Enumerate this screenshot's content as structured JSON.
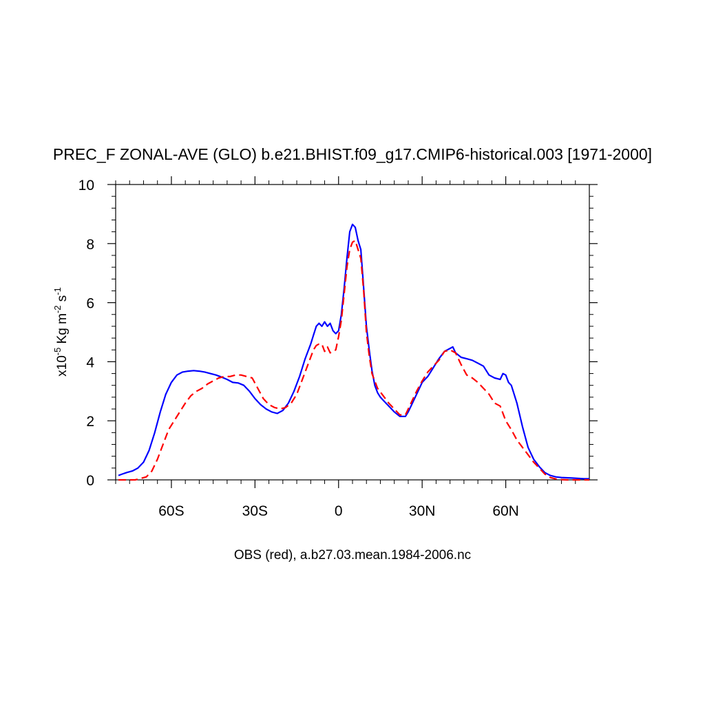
{
  "chart_data": {
    "type": "line",
    "title": "PREC_F ZONAL-AVE (GLO) b.e21.BHIST.f09_g17.CMIP6-historical.003 [1971-2000]",
    "xlabel": "OBS (red), a.b27.03.mean.1984-2006.nc",
    "ylabel": {
      "prefix": "x10",
      "exp1": "-5",
      "mid": " Kg m",
      "exp2": "-2",
      "mid2": " s",
      "exp3": "-1"
    },
    "xlim": [
      -80,
      90
    ],
    "ylim": [
      0,
      10
    ],
    "x_ticks": [
      {
        "value": -60,
        "label": "60S"
      },
      {
        "value": -30,
        "label": "30S"
      },
      {
        "value": 0,
        "label": "0"
      },
      {
        "value": 30,
        "label": "30N"
      },
      {
        "value": 60,
        "label": "60N"
      }
    ],
    "y_ticks": [
      {
        "value": 0,
        "label": "0"
      },
      {
        "value": 2,
        "label": "2"
      },
      {
        "value": 4,
        "label": "4"
      },
      {
        "value": 6,
        "label": "6"
      },
      {
        "value": 8,
        "label": "8"
      },
      {
        "value": 10,
        "label": "10"
      }
    ],
    "grid": false,
    "series": [
      {
        "color": "#0000ff",
        "dash": "solid",
        "x": [
          -79,
          -77.5,
          -76,
          -74,
          -72,
          -70,
          -68,
          -66,
          -64,
          -62,
          -60,
          -58,
          -56,
          -54,
          -52,
          -50,
          -48,
          -46,
          -44,
          -42,
          -40,
          -38,
          -36,
          -34,
          -32,
          -30,
          -28,
          -26,
          -24,
          -22,
          -20,
          -18,
          -16,
          -14,
          -12,
          -10,
          -9,
          -8,
          -7,
          -6,
          -5,
          -4,
          -3,
          -2,
          -1,
          0,
          1,
          2,
          3,
          4,
          5,
          6,
          7,
          8,
          9,
          10,
          11,
          12,
          13,
          14,
          15,
          16,
          18,
          20,
          22,
          24,
          25,
          26,
          28,
          30,
          32,
          34,
          36,
          38,
          40,
          41,
          42,
          44,
          46,
          48,
          50,
          52,
          54,
          56,
          58,
          59,
          60,
          61,
          62,
          64,
          66,
          68,
          70,
          72,
          74,
          76,
          78,
          80,
          82,
          84,
          86,
          88,
          90
        ],
        "y": [
          0.15,
          0.2,
          0.25,
          0.3,
          0.4,
          0.6,
          1.0,
          1.6,
          2.3,
          2.9,
          3.3,
          3.55,
          3.65,
          3.68,
          3.7,
          3.68,
          3.65,
          3.6,
          3.55,
          3.48,
          3.4,
          3.3,
          3.28,
          3.2,
          3.0,
          2.75,
          2.55,
          2.4,
          2.3,
          2.25,
          2.35,
          2.6,
          3.0,
          3.5,
          4.1,
          4.6,
          4.9,
          5.2,
          5.3,
          5.2,
          5.35,
          5.2,
          5.3,
          5.05,
          4.95,
          5.05,
          5.6,
          6.5,
          7.5,
          8.4,
          8.65,
          8.55,
          8.1,
          7.8,
          6.5,
          5.2,
          4.4,
          3.7,
          3.2,
          2.95,
          2.8,
          2.7,
          2.5,
          2.3,
          2.15,
          2.15,
          2.3,
          2.5,
          2.9,
          3.3,
          3.5,
          3.8,
          4.1,
          4.35,
          4.45,
          4.5,
          4.3,
          4.15,
          4.1,
          4.05,
          3.95,
          3.85,
          3.55,
          3.45,
          3.4,
          3.6,
          3.55,
          3.3,
          3.2,
          2.6,
          1.8,
          1.1,
          0.7,
          0.45,
          0.25,
          0.15,
          0.1,
          0.08,
          0.07,
          0.06,
          0.05,
          0.04,
          0.04
        ]
      },
      {
        "color": "#ff0000",
        "dash": "dashed",
        "x": [
          -79,
          -77,
          -75,
          -73,
          -71,
          -69,
          -67,
          -65,
          -63,
          -61,
          -59,
          -57,
          -55,
          -53,
          -51,
          -49,
          -47,
          -45,
          -43,
          -41,
          -39,
          -37,
          -35,
          -33,
          -31,
          -29,
          -27,
          -25,
          -23,
          -21,
          -19,
          -17,
          -15,
          -13,
          -11,
          -9,
          -8,
          -7,
          -6,
          -5,
          -4,
          -3,
          -2,
          -1,
          0,
          1,
          2,
          3,
          4,
          5,
          6,
          7,
          8,
          9,
          10,
          11,
          12,
          14,
          16,
          18,
          20,
          22,
          24,
          26,
          28,
          30,
          32,
          34,
          36,
          38,
          40,
          42,
          44,
          46,
          48,
          50,
          52,
          54,
          56,
          58,
          60,
          62,
          64,
          66,
          68,
          70,
          72,
          74,
          76,
          78,
          80,
          82,
          84,
          86,
          88,
          90
        ],
        "y": [
          0.0,
          0.0,
          0.0,
          0.0,
          0.05,
          0.1,
          0.3,
          0.7,
          1.2,
          1.7,
          2.0,
          2.3,
          2.6,
          2.85,
          3.0,
          3.1,
          3.25,
          3.35,
          3.45,
          3.5,
          3.5,
          3.55,
          3.55,
          3.5,
          3.45,
          3.1,
          2.75,
          2.55,
          2.45,
          2.4,
          2.45,
          2.6,
          2.9,
          3.4,
          3.9,
          4.4,
          4.55,
          4.6,
          4.6,
          4.35,
          4.5,
          4.3,
          4.35,
          4.4,
          4.85,
          5.4,
          6.3,
          7.2,
          7.8,
          8.05,
          8.1,
          7.8,
          7.5,
          6.4,
          5.0,
          4.2,
          3.6,
          3.1,
          2.85,
          2.6,
          2.4,
          2.2,
          2.2,
          2.6,
          3.0,
          3.35,
          3.65,
          3.85,
          4.05,
          4.35,
          4.4,
          4.3,
          3.9,
          3.55,
          3.45,
          3.3,
          3.1,
          2.9,
          2.6,
          2.5,
          2.0,
          1.7,
          1.35,
          1.1,
          0.85,
          0.6,
          0.4,
          0.2,
          0.08,
          0.03,
          0.01,
          0.0,
          0.0,
          0.0,
          0.0,
          0.0
        ]
      }
    ]
  }
}
